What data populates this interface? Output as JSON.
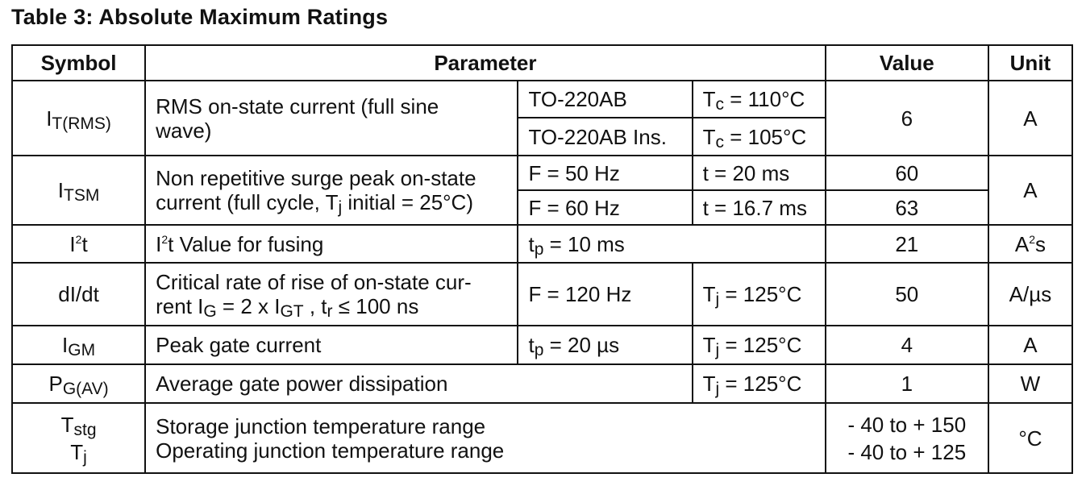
{
  "title": "Table 3: Absolute Maximum Ratings",
  "headers": {
    "symbol": "Symbol",
    "parameter": "Parameter",
    "value": "Value",
    "unit": "Unit"
  },
  "rows": {
    "it_rms": {
      "symbol_main": "I",
      "symbol_sub": "T(RMS)",
      "description": "RMS on-state current (full sine wave)",
      "cond1_a": "TO-220AB",
      "cond1_b_main": "T",
      "cond1_b_sub": "c",
      "cond1_b_rest": " = 110°C",
      "cond2_a": "TO-220AB Ins.",
      "cond2_b_main": "T",
      "cond2_b_sub": "c",
      "cond2_b_rest": " = 105°C",
      "value": "6",
      "unit": "A"
    },
    "itsm": {
      "symbol_main": "I",
      "symbol_sub": "TSM",
      "description_1": "Non repetitive surge peak on-state",
      "description_2a": "current  (full cycle, T",
      "description_2sub": "j",
      "description_2b": " initial = 25°C)",
      "cond1_a": "F = 50 Hz",
      "cond1_b": "t = 20 ms",
      "value1": "60",
      "cond2_a": "F = 60 Hz",
      "cond2_b": "t = 16.7 ms",
      "value2": "63",
      "unit": "A"
    },
    "i2t": {
      "symbol_main": "I",
      "symbol_sup": "2",
      "symbol_rest": "t",
      "description_main": "I",
      "description_sup": "2",
      "description_rest": "t Value for fusing",
      "cond_main": "t",
      "cond_sub": "p",
      "cond_rest": " = 10 ms",
      "value": "21",
      "unit_main": "A",
      "unit_sup": "2",
      "unit_rest": "s"
    },
    "didt": {
      "symbol": "dI/dt",
      "description_1": "Critical rate of rise of on-state cur-",
      "description_2a": "rent I",
      "description_2sub1": "G",
      "description_2b": " = 2 x I",
      "description_2sub2": "GT",
      "description_2c": " , t",
      "description_2sub3": "r",
      "description_2d": " ≤ 100 ns",
      "cond_a": "F = 120 Hz",
      "cond_b_main": "T",
      "cond_b_sub": "j",
      "cond_b_rest": " = 125°C",
      "value": "50",
      "unit": "A/µs"
    },
    "igm": {
      "symbol_main": "I",
      "symbol_sub": "GM",
      "description": "Peak gate current",
      "cond_a_main": "t",
      "cond_a_sub": "p",
      "cond_a_rest": " = 20 µs",
      "cond_b_main": "T",
      "cond_b_sub": "j",
      "cond_b_rest": " = 125°C",
      "value": "4",
      "unit": "A"
    },
    "pgav": {
      "symbol_main": "P",
      "symbol_sub": "G(AV)",
      "description": "Average gate power dissipation",
      "cond_b_main": "T",
      "cond_b_sub": "j",
      "cond_b_rest": " = 125°C",
      "value": "1",
      "unit": "W"
    },
    "temp": {
      "symbol1_main": "T",
      "symbol1_sub": "stg",
      "symbol2_main": "T",
      "symbol2_sub": "j",
      "description_1": "Storage junction temperature range",
      "description_2": "Operating junction temperature range",
      "value1": "- 40 to + 150",
      "value2": "- 40 to + 125",
      "unit": "°C"
    }
  }
}
